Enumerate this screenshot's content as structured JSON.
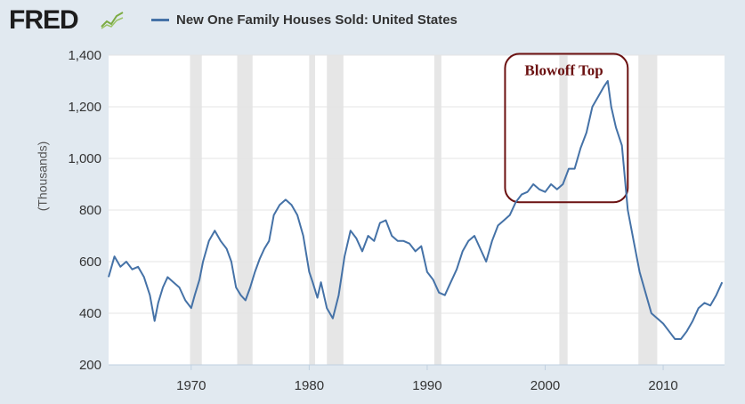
{
  "header": {
    "logo": "FRED",
    "legend_label": "New One Family Houses Sold: United States",
    "series_color": "#4572a7"
  },
  "chart_data": {
    "type": "line",
    "title": "New One Family Houses Sold: United States",
    "ylabel": "(Thousands)",
    "xlabel": "",
    "xlim": [
      1963.0,
      2015.2
    ],
    "ylim": [
      200,
      1400
    ],
    "x_ticks": [
      1970,
      1980,
      1990,
      2000,
      2010
    ],
    "y_ticks": [
      200,
      400,
      600,
      800,
      1000,
      1200,
      1400
    ],
    "y_tick_labels": [
      "200",
      "400",
      "600",
      "800",
      "1,000",
      "1,200",
      "1,400"
    ],
    "grid": true,
    "recessions": [
      [
        1969.9,
        1970.9
      ],
      [
        1973.9,
        1975.2
      ],
      [
        1980.0,
        1980.5
      ],
      [
        1981.5,
        1982.9
      ],
      [
        1990.6,
        1991.2
      ],
      [
        2001.2,
        2001.9
      ],
      [
        2007.9,
        2009.5
      ]
    ],
    "annotation": {
      "text": "Blowoff Top",
      "x_range": [
        1996.6,
        2007.0
      ],
      "y_range": [
        830,
        1405
      ]
    },
    "series": [
      {
        "name": "New One Family Houses Sold: United States",
        "x": [
          1963.0,
          1963.5,
          1964.0,
          1964.5,
          1965.0,
          1965.5,
          1966.0,
          1966.5,
          1966.9,
          1967.2,
          1967.6,
          1968.0,
          1968.5,
          1969.0,
          1969.5,
          1970.0,
          1970.3,
          1970.7,
          1971.0,
          1971.5,
          1972.0,
          1972.5,
          1973.0,
          1973.4,
          1973.8,
          1974.2,
          1974.6,
          1975.0,
          1975.4,
          1975.8,
          1976.2,
          1976.6,
          1977.0,
          1977.5,
          1978.0,
          1978.5,
          1979.0,
          1979.5,
          1980.0,
          1980.3,
          1980.7,
          1981.0,
          1981.5,
          1982.0,
          1982.5,
          1983.0,
          1983.5,
          1984.0,
          1984.5,
          1985.0,
          1985.5,
          1986.0,
          1986.5,
          1987.0,
          1987.5,
          1988.0,
          1988.5,
          1989.0,
          1989.5,
          1990.0,
          1990.5,
          1991.0,
          1991.5,
          1992.0,
          1992.5,
          1993.0,
          1993.5,
          1994.0,
          1994.5,
          1995.0,
          1995.5,
          1996.0,
          1996.5,
          1997.0,
          1997.5,
          1998.0,
          1998.5,
          1999.0,
          1999.5,
          2000.0,
          2000.5,
          2001.0,
          2001.5,
          2002.0,
          2002.5,
          2003.0,
          2003.5,
          2004.0,
          2004.5,
          2005.0,
          2005.3,
          2005.6,
          2006.0,
          2006.5,
          2007.0,
          2007.5,
          2008.0,
          2008.5,
          2009.0,
          2009.5,
          2010.0,
          2010.5,
          2011.0,
          2011.5,
          2012.0,
          2012.5,
          2013.0,
          2013.5,
          2014.0,
          2014.5,
          2015.0
        ],
        "values": [
          540,
          620,
          580,
          600,
          570,
          580,
          540,
          470,
          370,
          440,
          500,
          540,
          520,
          500,
          450,
          420,
          470,
          530,
          600,
          680,
          720,
          680,
          650,
          600,
          500,
          470,
          450,
          500,
          560,
          610,
          650,
          680,
          780,
          820,
          840,
          820,
          780,
          700,
          560,
          520,
          460,
          520,
          420,
          380,
          470,
          620,
          720,
          690,
          640,
          700,
          680,
          750,
          760,
          700,
          680,
          680,
          670,
          640,
          660,
          560,
          530,
          480,
          470,
          520,
          570,
          640,
          680,
          700,
          650,
          600,
          680,
          740,
          760,
          780,
          830,
          860,
          870,
          900,
          880,
          870,
          900,
          880,
          900,
          960,
          960,
          1040,
          1100,
          1200,
          1240,
          1280,
          1300,
          1200,
          1120,
          1050,
          800,
          680,
          560,
          480,
          400,
          380,
          360,
          330,
          300,
          300,
          330,
          370,
          420,
          440,
          430,
          470,
          520
        ]
      }
    ]
  }
}
